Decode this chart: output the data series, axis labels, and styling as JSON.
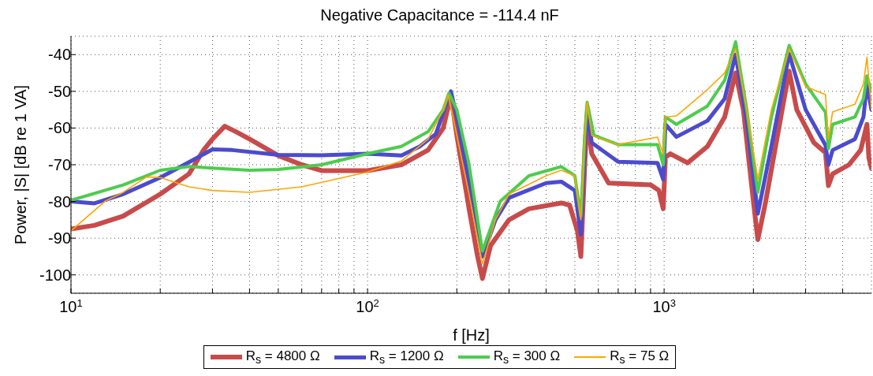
{
  "chart_data": {
    "type": "line",
    "title": "Negative Capacitance = -114.4 nF",
    "xlabel": "f [Hz]",
    "ylabel": "Power, |S| [dB re 1 VA]",
    "log": "x",
    "grid": true,
    "line_style": "solid",
    "marker": "none",
    "legend": "bottom",
    "xlim": [
      10,
      5000
    ],
    "ylim": [
      -105,
      -35
    ],
    "xticks": [
      {
        "value": 10,
        "label": "10$^{1}$"
      },
      {
        "value": 20,
        "label": null
      },
      {
        "value": 30,
        "label": null
      },
      {
        "value": 40,
        "label": null
      },
      {
        "value": 50,
        "label": null
      },
      {
        "value": 60,
        "label": null
      },
      {
        "value": 70,
        "label": null
      },
      {
        "value": 80,
        "label": null
      },
      {
        "value": 90,
        "label": null
      },
      {
        "value": 100,
        "label": "10$^{2}$"
      },
      {
        "value": 200,
        "label": null
      },
      {
        "value": 300,
        "label": null
      },
      {
        "value": 400,
        "label": null
      },
      {
        "value": 500,
        "label": null
      },
      {
        "value": 600,
        "label": null
      },
      {
        "value": 700,
        "label": null
      },
      {
        "value": 800,
        "label": null
      },
      {
        "value": 900,
        "label": null
      },
      {
        "value": 1000,
        "label": "10$^{3}$"
      },
      {
        "value": 2000,
        "label": null
      },
      {
        "value": 3000,
        "label": null
      },
      {
        "value": 4000,
        "label": null
      }
    ],
    "yticks": [
      -100,
      -90,
      -80,
      -70,
      -60,
      -50,
      -40
    ],
    "series": [
      {
        "name": "R$_{s}$ = 4800 Ω",
        "color": "#c84b4b",
        "x": [
          10,
          12,
          15,
          20,
          25,
          28,
          30,
          33,
          36,
          40,
          50,
          60,
          70,
          100,
          130,
          160,
          180,
          191,
          200,
          220,
          235,
          244,
          260,
          300,
          350,
          450,
          480,
          510,
          524,
          540,
          550,
          570,
          650,
          900,
          960,
          993,
          1010,
          1050,
          1200,
          1400,
          1600,
          1742,
          1850,
          2000,
          2070,
          2200,
          2500,
          2640,
          2800,
          3200,
          3500,
          3580,
          3700,
          4200,
          4600,
          4830,
          4900,
          5000
        ],
        "values": [
          -87.5,
          -86.5,
          -84,
          -78,
          -72.5,
          -66,
          -63,
          -59.5,
          -61,
          -63,
          -67.5,
          -70,
          -71.6,
          -71.6,
          -70,
          -66,
          -60,
          -51,
          -62,
          -82,
          -95,
          -101,
          -92,
          -85,
          -82,
          -80.4,
          -81,
          -88,
          -95,
          -70,
          -57,
          -67,
          -75,
          -75.5,
          -77,
          -82,
          -68,
          -67,
          -69.5,
          -65,
          -57,
          -45,
          -55,
          -80,
          -90.4,
          -80,
          -55,
          -44.5,
          -55,
          -64,
          -66.7,
          -75.7,
          -72.5,
          -70,
          -66,
          -59,
          -68,
          -71
        ]
      },
      {
        "name": "R$_{s}$ = 1200 Ω",
        "color": "#4b4bcf",
        "x": [
          10,
          12,
          15,
          20,
          25,
          30,
          35,
          50,
          70,
          100,
          130,
          150,
          170,
          185,
          191,
          200,
          220,
          244,
          270,
          300,
          400,
          450,
          500,
          524,
          540,
          550,
          570,
          700,
          950,
          993,
          1010,
          1100,
          1400,
          1600,
          1742,
          1900,
          2070,
          2300,
          2640,
          3000,
          3500,
          3580,
          3700,
          4400,
          4700,
          4830,
          5000
        ],
        "values": [
          -80,
          -80.5,
          -78,
          -73.5,
          -69.3,
          -65.8,
          -66,
          -67.3,
          -67.4,
          -67,
          -67.5,
          -65,
          -61.6,
          -53,
          -50,
          -57,
          -75,
          -95,
          -85,
          -79,
          -75,
          -74.6,
          -77,
          -89,
          -65,
          -55,
          -64,
          -69.2,
          -69.5,
          -74,
          -59,
          -62.4,
          -58,
          -52,
          -40,
          -58,
          -83.3,
          -65,
          -39.8,
          -55,
          -64.7,
          -70,
          -66,
          -63,
          -57,
          -48,
          -55
        ]
      },
      {
        "name": "R$_{s}$ = 300 Ω",
        "color": "#4dcc4d",
        "x": [
          10,
          15,
          20,
          25,
          30,
          40,
          50,
          70,
          100,
          130,
          160,
          180,
          188,
          200,
          220,
          244,
          280,
          350,
          450,
          500,
          524,
          540,
          550,
          580,
          700,
          950,
          993,
          1010,
          1100,
          1400,
          1600,
          1742,
          1900,
          2070,
          2300,
          2640,
          3000,
          3500,
          3580,
          3700,
          4400,
          4700,
          4830,
          5000
        ],
        "values": [
          -79.7,
          -75.5,
          -71.5,
          -70.5,
          -70.9,
          -71.5,
          -71.3,
          -70,
          -67,
          -65,
          -61,
          -55,
          -50.5,
          -55,
          -70,
          -93.5,
          -80,
          -73,
          -70.5,
          -73,
          -84,
          -62,
          -53,
          -62,
          -64.5,
          -64.5,
          -70,
          -57,
          -59,
          -54,
          -47,
          -36.5,
          -55,
          -77.5,
          -57,
          -37.5,
          -48,
          -55.7,
          -65.6,
          -59,
          -57,
          -52,
          -45.8,
          -50
        ]
      },
      {
        "name": "R$_{s}$ = 75 Ω",
        "color": "#ffa500",
        "x": [
          10,
          13,
          15,
          18,
          20,
          25,
          30,
          40,
          60,
          100,
          130,
          160,
          180,
          187,
          200,
          220,
          244,
          270,
          300,
          400,
          450,
          500,
          524,
          540,
          550,
          570,
          700,
          950,
          993,
          1010,
          1100,
          1400,
          1600,
          1742,
          1900,
          2070,
          2300,
          2640,
          3000,
          3500,
          3580,
          3700,
          4400,
          4700,
          4830,
          5000
        ],
        "values": [
          -88,
          -80,
          -77.5,
          -73.3,
          -73.5,
          -76,
          -77,
          -77.5,
          -76,
          -72,
          -69,
          -63,
          -55,
          -51,
          -62,
          -78,
          -97,
          -85,
          -78,
          -73,
          -71.5,
          -73,
          -85,
          -62,
          -53,
          -62,
          -64.5,
          -62.5,
          -67,
          -57,
          -56.7,
          -49.5,
          -45,
          -38.4,
          -55,
          -74,
          -55,
          -38.4,
          -48.7,
          -50.9,
          -63,
          -55.6,
          -53.5,
          -48,
          -40.7,
          -55
        ]
      }
    ]
  }
}
